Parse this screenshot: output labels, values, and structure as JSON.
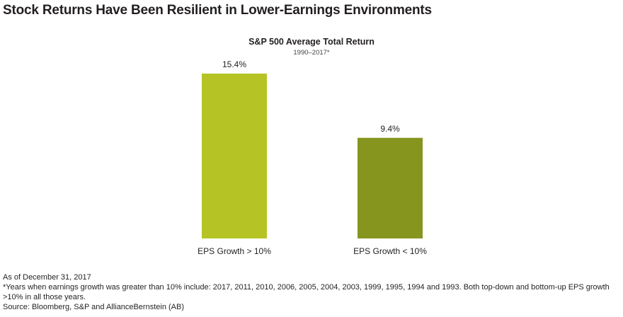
{
  "header": {
    "title": "Stock Returns Have Been Resilient in Lower-Earnings Environments"
  },
  "chart_data": {
    "type": "bar",
    "title": "S&P 500 Average Total Return",
    "subtitle": "1990–2017*",
    "categories": [
      "EPS Growth > 10%",
      "EPS Growth < 10%"
    ],
    "values": [
      15.4,
      9.4
    ],
    "value_labels": [
      "15.4%",
      "9.4%"
    ],
    "colors": [
      "#b5c424",
      "#86951e"
    ],
    "ylim": [
      0,
      15.4
    ],
    "grid": false,
    "legend": "none"
  },
  "footnotes": {
    "as_of": "As of December 31, 2017",
    "note": "*Years when earnings growth was greater than 10% include: 2017, 2011, 2010, 2006, 2005, 2004, 2003, 1999, 1995, 1994 and 1993.  Both top-down and bottom-up EPS growth >10% in all those years.",
    "source": "Source: Bloomberg, S&P and AllianceBernstein (AB)"
  }
}
